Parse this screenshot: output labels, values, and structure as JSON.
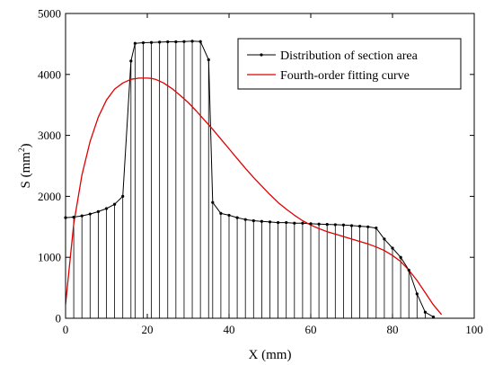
{
  "chart_data": {
    "type": "line",
    "title": "",
    "xlabel": "X (mm)",
    "ylabel_main": "S (mm",
    "ylabel_sup": "2",
    "ylabel_close": ")",
    "xlim": [
      0,
      100
    ],
    "ylim": [
      0,
      5000
    ],
    "xticks": [
      0,
      20,
      40,
      60,
      80,
      100
    ],
    "yticks": [
      0,
      1000,
      2000,
      3000,
      4000,
      5000
    ],
    "grid": false,
    "legend_position": "top-right",
    "series": [
      {
        "name": "Distribution of section area",
        "color": "#000000",
        "marker": "dot",
        "drop_lines": true,
        "x": [
          0,
          2,
          4,
          6,
          8,
          10,
          12,
          14,
          16,
          17,
          19,
          21,
          23,
          25,
          27,
          29,
          31,
          33,
          35,
          36,
          38,
          40,
          42,
          44,
          46,
          48,
          50,
          52,
          54,
          56,
          58,
          60,
          62,
          64,
          66,
          68,
          70,
          72,
          74,
          76,
          78,
          80,
          82,
          84,
          86,
          88,
          90
        ],
        "y": [
          1650,
          1660,
          1680,
          1710,
          1750,
          1800,
          1870,
          2000,
          4220,
          4510,
          4520,
          4525,
          4530,
          4535,
          4535,
          4540,
          4545,
          4540,
          4240,
          1900,
          1720,
          1690,
          1650,
          1620,
          1600,
          1590,
          1580,
          1570,
          1570,
          1560,
          1560,
          1550,
          1545,
          1540,
          1535,
          1530,
          1520,
          1510,
          1500,
          1480,
          1300,
          1150,
          1000,
          790,
          400,
          100,
          20
        ]
      },
      {
        "name": "Fourth-order fitting curve",
        "color": "#e00000",
        "marker": "none",
        "drop_lines": false,
        "x": [
          0,
          2,
          4,
          6,
          8,
          10,
          12,
          14,
          16,
          18,
          20,
          21,
          22,
          24,
          26,
          28,
          30,
          32,
          34,
          36,
          38,
          40,
          42,
          44,
          46,
          48,
          50,
          52,
          54,
          56,
          58,
          60,
          62,
          64,
          66,
          68,
          70,
          72,
          74,
          76,
          78,
          80,
          82,
          84,
          86,
          88,
          90,
          92
        ],
        "y": [
          230,
          1550,
          2350,
          2900,
          3300,
          3580,
          3760,
          3860,
          3920,
          3940,
          3940,
          3935,
          3920,
          3860,
          3770,
          3660,
          3540,
          3400,
          3250,
          3100,
          2940,
          2780,
          2620,
          2460,
          2310,
          2170,
          2030,
          1900,
          1790,
          1690,
          1600,
          1530,
          1470,
          1420,
          1380,
          1340,
          1300,
          1260,
          1220,
          1170,
          1110,
          1030,
          930,
          790,
          620,
          420,
          220,
          60
        ]
      }
    ]
  }
}
